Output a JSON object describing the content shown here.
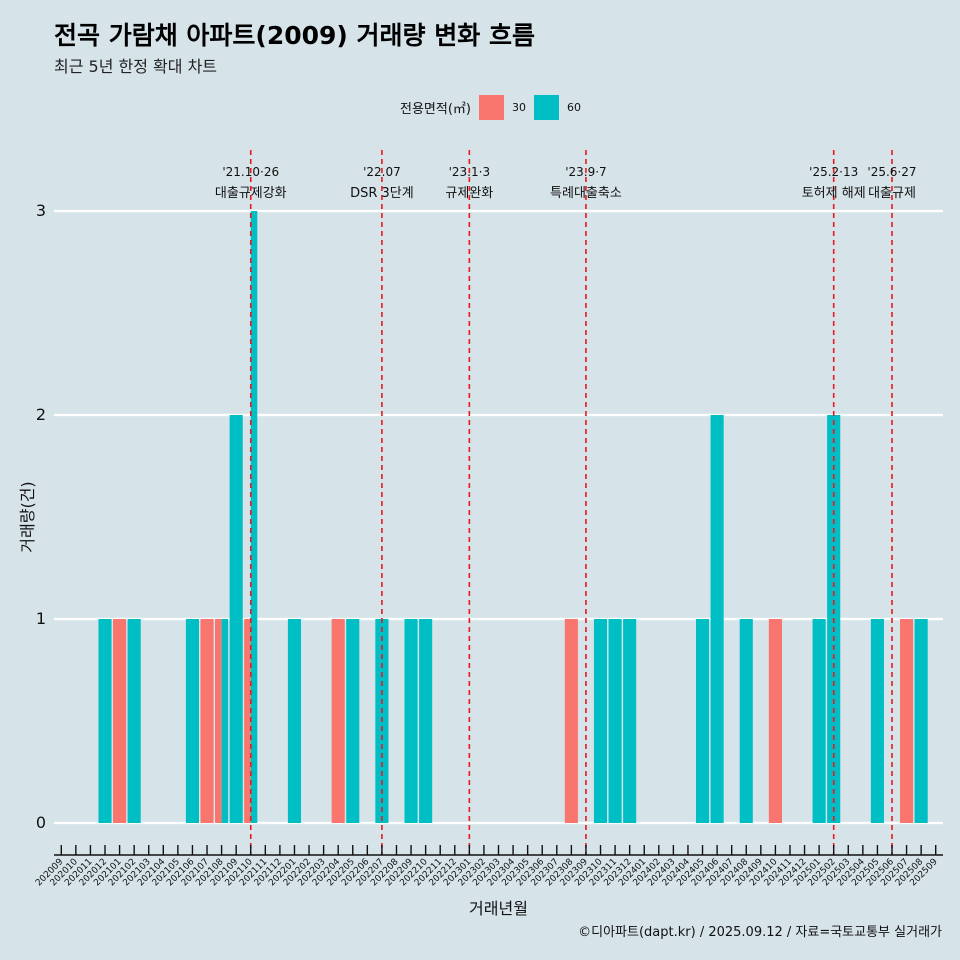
{
  "title": "전곡 가람채 아파트(2009) 거래량 변화 흐름",
  "subtitle": "최근 5년 한정 확대 차트",
  "caption": "©디아파트(dapt.kr) / 2025.09.12 / 자료=국토교통부 실거래가",
  "legend": {
    "title": "전용면적(㎡)",
    "items": [
      {
        "label": "30",
        "color": "#f8766d"
      },
      {
        "label": "60",
        "color": "#00bfc4"
      }
    ]
  },
  "chart_data": {
    "type": "bar",
    "xlabel": "거래년월",
    "ylabel": "거래량(건)",
    "ylim": [
      0,
      3
    ],
    "yticks": [
      0,
      1,
      2,
      3
    ],
    "grid": true,
    "legend_position": "top",
    "categories": [
      "202009",
      "202010",
      "202011",
      "202012",
      "202101",
      "202102",
      "202103",
      "202104",
      "202105",
      "202106",
      "202107",
      "202108",
      "202109",
      "202110",
      "202111",
      "202112",
      "202201",
      "202202",
      "202203",
      "202204",
      "202205",
      "202206",
      "202207",
      "202208",
      "202209",
      "202210",
      "202211",
      "202212",
      "202301",
      "202302",
      "202303",
      "202304",
      "202305",
      "202306",
      "202307",
      "202308",
      "202309",
      "202310",
      "202311",
      "202312",
      "202401",
      "202402",
      "202403",
      "202404",
      "202405",
      "202406",
      "202407",
      "202408",
      "202409",
      "202410",
      "202411",
      "202412",
      "202501",
      "202502",
      "202503",
      "202504",
      "202505",
      "202506",
      "202507",
      "202508",
      "202509"
    ],
    "bars": [
      {
        "month": "202012",
        "area": "60",
        "value": 1
      },
      {
        "month": "202101",
        "area": "30",
        "value": 1
      },
      {
        "month": "202102",
        "area": "60",
        "value": 1
      },
      {
        "month": "202106",
        "area": "60",
        "value": 1
      },
      {
        "month": "202107",
        "area": "30",
        "value": 1
      },
      {
        "month": "202108",
        "area": "30",
        "value": 1
      },
      {
        "month": "202108",
        "area": "60",
        "value": 1
      },
      {
        "month": "202109",
        "area": "60",
        "value": 2
      },
      {
        "month": "202110",
        "area": "30",
        "value": 1
      },
      {
        "month": "202110",
        "area": "60",
        "value": 3
      },
      {
        "month": "202201",
        "area": "60",
        "value": 1
      },
      {
        "month": "202204",
        "area": "30",
        "value": 1
      },
      {
        "month": "202205",
        "area": "60",
        "value": 1
      },
      {
        "month": "202207",
        "area": "60",
        "value": 1
      },
      {
        "month": "202209",
        "area": "60",
        "value": 1
      },
      {
        "month": "202210",
        "area": "60",
        "value": 1
      },
      {
        "month": "202308",
        "area": "30",
        "value": 1
      },
      {
        "month": "202310",
        "area": "60",
        "value": 1
      },
      {
        "month": "202311",
        "area": "60",
        "value": 1
      },
      {
        "month": "202312",
        "area": "60",
        "value": 1
      },
      {
        "month": "202405",
        "area": "60",
        "value": 1
      },
      {
        "month": "202406",
        "area": "60",
        "value": 2
      },
      {
        "month": "202408",
        "area": "60",
        "value": 1
      },
      {
        "month": "202410",
        "area": "30",
        "value": 1
      },
      {
        "month": "202501",
        "area": "60",
        "value": 1
      },
      {
        "month": "202502",
        "area": "60",
        "value": 2
      },
      {
        "month": "202505",
        "area": "60",
        "value": 1
      },
      {
        "month": "202507",
        "area": "30",
        "value": 1
      },
      {
        "month": "202508",
        "area": "60",
        "value": 1
      }
    ],
    "events": [
      {
        "month": "202110",
        "date": "'21.10·26",
        "label": "대출규제강화"
      },
      {
        "month": "202207",
        "date": "'22.07",
        "label": "DSR 3단계"
      },
      {
        "month": "202301",
        "date": "'23.1·3",
        "label": "규제완화"
      },
      {
        "month": "202309",
        "date": "'23.9·7",
        "label": "특례대출축소"
      },
      {
        "month": "202502",
        "date": "'25.2·13",
        "label": "토허제 해제"
      },
      {
        "month": "202506",
        "date": "'25.6·27",
        "label": "대출규제"
      }
    ]
  }
}
